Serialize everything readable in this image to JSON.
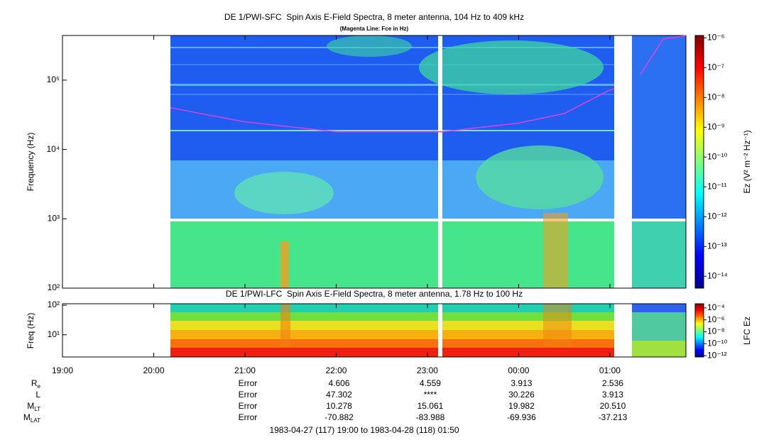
{
  "chart_data": [
    {
      "type": "spectrogram",
      "title": "DE 1/PWI-SFC  Spin Axis E-Field Spectra, 8 meter antenna, 104 Hz to 409 kHz",
      "subtitle": "(Magenta Line: Fce in Hz)",
      "ylabel": "Frequency (Hz)",
      "ylim": [
        100,
        440000
      ],
      "log_y": true,
      "yticks": [
        {
          "value": 100,
          "label": "10²"
        },
        {
          "value": 1000,
          "label": "10³"
        },
        {
          "value": 10000,
          "label": "10⁴"
        },
        {
          "value": 100000,
          "label": "10⁵"
        }
      ],
      "colorbar_label": "Ez (V² m⁻² Hz⁻¹)",
      "zlim": [
        4e-15,
        1.2e-06
      ],
      "zticks": [
        {
          "value": 1e-06,
          "label": "10⁻⁶"
        },
        {
          "value": 1e-07,
          "label": "10⁻⁷"
        },
        {
          "value": 1e-08,
          "label": "10⁻⁸"
        },
        {
          "value": 1e-09,
          "label": "10⁻⁹"
        },
        {
          "value": 1e-10,
          "label": "10⁻¹⁰"
        },
        {
          "value": 1e-11,
          "label": "10⁻¹¹"
        },
        {
          "value": 1e-12,
          "label": "10⁻¹²"
        },
        {
          "value": 1e-13,
          "label": "10⁻¹³"
        },
        {
          "value": 1e-14,
          "label": "10⁻¹⁴"
        }
      ],
      "line": {
        "color": "#e040e0",
        "x": [
          71,
          120,
          180,
          250,
          300,
          330,
          360,
          363,
          375,
          380,
          395,
          410
        ],
        "values": [
          40000,
          25000,
          18000,
          18000,
          24000,
          33000,
          72000,
          75000,
          null,
          120000,
          390000,
          440000
        ]
      }
    },
    {
      "type": "spectrogram",
      "title": "DE 1/PWI-LFC  Spin Axis E-Field Spectra, 8 meter antenna, 1.78 Hz to 100 Hz",
      "ylabel": "Freq (Hz)",
      "ylim": [
        1.78,
        112
      ],
      "log_y": true,
      "yticks": [
        {
          "value": 10,
          "label": "10¹"
        },
        {
          "value": 100,
          "label": "10²"
        }
      ],
      "colorbar_label": "LFC Ez",
      "zlim": [
        6e-13,
        0.0005
      ],
      "zticks": [
        {
          "value": 0.0001,
          "label": "10⁻⁴"
        },
        {
          "value": 1e-06,
          "label": "10⁻⁶"
        },
        {
          "value": 1e-08,
          "label": "10⁻⁸"
        },
        {
          "value": 1e-10,
          "label": "10⁻¹⁰"
        },
        {
          "value": 1e-12,
          "label": "10⁻¹²"
        }
      ]
    }
  ],
  "time_axis": {
    "xlim": [
      0,
      410
    ],
    "xticks": [
      {
        "value": 0,
        "label": "19:00"
      },
      {
        "value": 60,
        "label": "20:00"
      },
      {
        "value": 120,
        "label": "21:00"
      },
      {
        "value": 180,
        "label": "22:00"
      },
      {
        "value": 240,
        "label": "23:00"
      },
      {
        "value": 300,
        "label": "00:00"
      },
      {
        "value": 360,
        "label": "01:00"
      }
    ]
  },
  "ephemeris": {
    "columns_at_ticks": [
      2,
      3,
      4,
      5,
      6
    ],
    "rows": [
      {
        "label": "R",
        "subscript": "e",
        "values": [
          "Error",
          "4.606",
          "4.559",
          "3.913",
          "2.536"
        ]
      },
      {
        "label": "L",
        "values": [
          "Error",
          "47.302",
          "****",
          "30.226",
          "3.913"
        ]
      },
      {
        "label": "M",
        "subscript": "LT",
        "values": [
          "Error",
          "10.278",
          "15.061",
          "19.982",
          "20.510"
        ]
      },
      {
        "label": "M",
        "subscript": "LAT",
        "values": [
          "Error",
          "-70.882",
          "-83.988",
          "-69.936",
          "-37.213"
        ]
      }
    ]
  },
  "footer": "1983-04-27 (117) 19:00 to 1983-04-28 (118) 01:50"
}
